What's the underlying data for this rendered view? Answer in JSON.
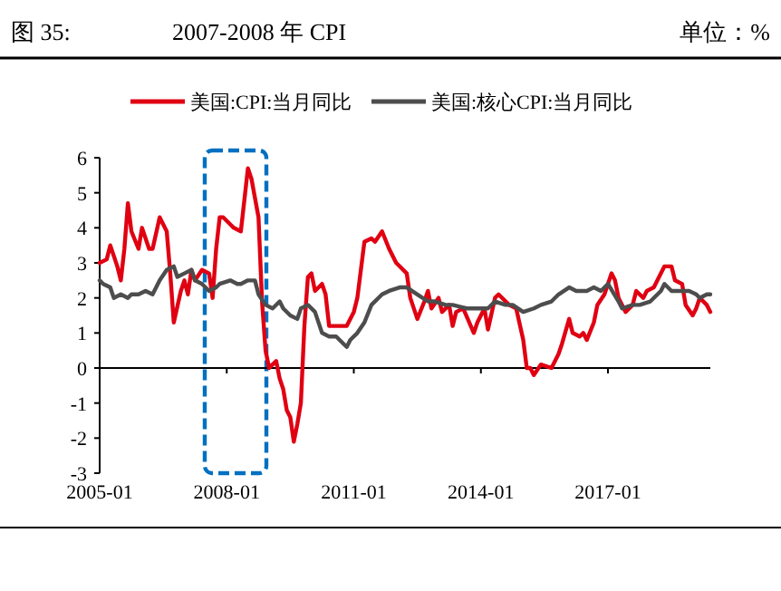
{
  "chart_data": {
    "type": "line",
    "title": "图 35:",
    "subtitle": "2007-2008 年 CPI",
    "ylabel": "单位：%",
    "xlim": [
      "2005-01",
      "2019-06"
    ],
    "xticks": [
      "2005-01",
      "2008-01",
      "2011-01",
      "2014-01",
      "2017-01"
    ],
    "ylim": [
      -3,
      6
    ],
    "yticks": [
      -3,
      -2,
      -1,
      0,
      1,
      2,
      3,
      4,
      5,
      6
    ],
    "legend": "top",
    "marker": "none",
    "line_style": "solid",
    "series": [
      {
        "name": "美国:CPI:当月同比",
        "color": "#e00012",
        "x": [
          "2005-01",
          "2005-03",
          "2005-04",
          "2005-06",
          "2005-07",
          "2005-08",
          "2005-09",
          "2005-10",
          "2005-12",
          "2006-01",
          "2006-03",
          "2006-04",
          "2006-06",
          "2006-08",
          "2006-09",
          "2006-10",
          "2006-12",
          "2007-01",
          "2007-02",
          "2007-03",
          "2007-04",
          "2007-06",
          "2007-08",
          "2007-09",
          "2007-10",
          "2007-11",
          "2007-12",
          "2008-02",
          "2008-03",
          "2008-05",
          "2008-06",
          "2008-07",
          "2008-08",
          "2008-10",
          "2008-11",
          "2008-12",
          "2009-01",
          "2009-02",
          "2009-03",
          "2009-04",
          "2009-05",
          "2009-06",
          "2009-07",
          "2009-08",
          "2009-09",
          "2009-10",
          "2009-11",
          "2009-12",
          "2010-01",
          "2010-02",
          "2010-04",
          "2010-05",
          "2010-06",
          "2010-08",
          "2010-10",
          "2010-11",
          "2011-01",
          "2011-02",
          "2011-04",
          "2011-06",
          "2011-07",
          "2011-09",
          "2011-11",
          "2012-01",
          "2012-04",
          "2012-05",
          "2012-07",
          "2012-09",
          "2012-10",
          "2012-11",
          "2013-01",
          "2013-02",
          "2013-04",
          "2013-05",
          "2013-06",
          "2013-08",
          "2013-11",
          "2013-12",
          "2014-02",
          "2014-03",
          "2014-05",
          "2014-06",
          "2014-09",
          "2014-11",
          "2015-01",
          "2015-02",
          "2015-03",
          "2015-04",
          "2015-06",
          "2015-09",
          "2015-11",
          "2015-12",
          "2016-02",
          "2016-03",
          "2016-05",
          "2016-06",
          "2016-07",
          "2016-09",
          "2016-10",
          "2016-12",
          "2017-02",
          "2017-03",
          "2017-04",
          "2017-06",
          "2017-08",
          "2017-09",
          "2017-11",
          "2017-12",
          "2018-02",
          "2018-03",
          "2018-05",
          "2018-07",
          "2018-08",
          "2018-10",
          "2018-11",
          "2019-01",
          "2019-02",
          "2019-03",
          "2019-05",
          "2019-06"
        ],
        "values": [
          3.0,
          3.1,
          3.5,
          2.9,
          2.5,
          3.4,
          4.7,
          3.9,
          3.4,
          4.0,
          3.4,
          3.4,
          4.3,
          3.9,
          2.7,
          1.3,
          2.2,
          2.5,
          2.1,
          2.8,
          2.5,
          2.8,
          2.7,
          2.0,
          3.4,
          4.3,
          4.3,
          4.1,
          4.0,
          3.9,
          4.8,
          5.7,
          5.4,
          4.3,
          1.9,
          0.5,
          0.0,
          0.1,
          0.2,
          -0.3,
          -0.6,
          -1.2,
          -1.4,
          -2.1,
          -1.6,
          -1.0,
          1.2,
          2.6,
          2.7,
          2.2,
          2.4,
          2.1,
          1.2,
          1.2,
          1.2,
          1.2,
          1.6,
          2.0,
          3.6,
          3.7,
          3.6,
          3.9,
          3.4,
          3.0,
          2.7,
          2.0,
          1.4,
          1.9,
          2.2,
          1.7,
          2.0,
          1.6,
          1.8,
          1.2,
          1.6,
          1.7,
          1.0,
          1.3,
          1.7,
          1.1,
          2.0,
          2.1,
          1.8,
          1.7,
          0.8,
          0.0,
          0.0,
          -0.2,
          0.1,
          0.0,
          0.4,
          0.7,
          1.4,
          1.0,
          0.9,
          1.0,
          0.8,
          1.3,
          1.8,
          2.1,
          2.7,
          2.5,
          2.0,
          1.6,
          1.8,
          2.2,
          2.0,
          2.2,
          2.3,
          2.5,
          2.9,
          2.9,
          2.5,
          2.4,
          1.8,
          1.5,
          1.7,
          2.0,
          1.8,
          1.6
        ]
      },
      {
        "name": "美国:核心CPI:当月同比",
        "color": "#4d4d4d",
        "x": [
          "2005-01",
          "2005-02",
          "2005-04",
          "2005-05",
          "2005-07",
          "2005-09",
          "2005-10",
          "2005-12",
          "2006-02",
          "2006-04",
          "2006-06",
          "2006-08",
          "2006-10",
          "2006-11",
          "2007-01",
          "2007-03",
          "2007-04",
          "2007-06",
          "2007-08",
          "2007-10",
          "2007-11",
          "2008-02",
          "2008-04",
          "2008-05",
          "2008-07",
          "2008-09",
          "2008-10",
          "2008-12",
          "2009-02",
          "2009-04",
          "2009-05",
          "2009-07",
          "2009-09",
          "2009-10",
          "2009-12",
          "2010-02",
          "2010-04",
          "2010-06",
          "2010-08",
          "2010-10",
          "2010-11",
          "2010-12",
          "2011-02",
          "2011-04",
          "2011-06",
          "2011-09",
          "2011-11",
          "2012-02",
          "2012-04",
          "2012-07",
          "2012-10",
          "2012-12",
          "2013-03",
          "2013-05",
          "2013-09",
          "2013-12",
          "2014-03",
          "2014-05",
          "2014-08",
          "2014-10",
          "2015-01",
          "2015-04",
          "2015-06",
          "2015-09",
          "2015-11",
          "2016-02",
          "2016-04",
          "2016-07",
          "2016-09",
          "2016-11",
          "2017-01",
          "2017-04",
          "2017-05",
          "2017-08",
          "2017-10",
          "2018-01",
          "2018-04",
          "2018-05",
          "2018-07",
          "2018-10",
          "2018-12",
          "2019-02",
          "2019-03",
          "2019-05",
          "2019-06"
        ],
        "values": [
          2.5,
          2.4,
          2.3,
          2.0,
          2.1,
          2.0,
          2.1,
          2.1,
          2.2,
          2.1,
          2.5,
          2.8,
          2.9,
          2.6,
          2.7,
          2.8,
          2.5,
          2.4,
          2.2,
          2.3,
          2.4,
          2.5,
          2.4,
          2.4,
          2.5,
          2.5,
          2.1,
          1.8,
          1.7,
          1.9,
          1.7,
          1.5,
          1.4,
          1.7,
          1.8,
          1.6,
          1.0,
          0.9,
          0.9,
          0.7,
          0.6,
          0.8,
          1.0,
          1.3,
          1.8,
          2.1,
          2.2,
          2.3,
          2.3,
          2.1,
          1.9,
          1.9,
          1.8,
          1.8,
          1.7,
          1.7,
          1.7,
          1.9,
          1.8,
          1.8,
          1.6,
          1.7,
          1.8,
          1.9,
          2.1,
          2.3,
          2.2,
          2.2,
          2.3,
          2.2,
          2.4,
          1.9,
          1.7,
          1.8,
          1.8,
          1.9,
          2.2,
          2.4,
          2.2,
          2.2,
          2.2,
          2.1,
          2.0,
          2.1,
          2.1
        ]
      }
    ]
  }
}
